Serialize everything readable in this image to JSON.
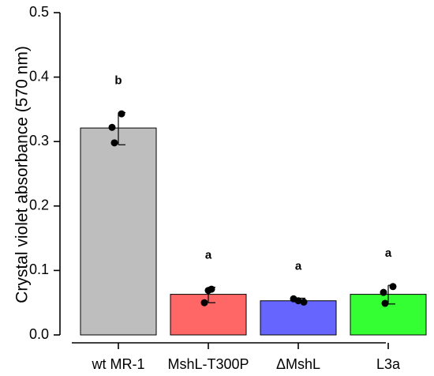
{
  "chart_data": {
    "type": "bar",
    "title": "",
    "xlabel": "",
    "ylabel": "Crystal violet absorbance (570 nm)",
    "ylim": [
      0,
      0.5
    ],
    "yticks": [
      "0.0",
      "0.1",
      "0.2",
      "0.3",
      "0.4",
      "0.5"
    ],
    "grid": false,
    "categories": [
      "wt MR-1",
      "MshL-T300P",
      "ΔMshL",
      "L3a"
    ],
    "values": [
      0.321,
      0.063,
      0.053,
      0.063
    ],
    "error_upper": [
      0.345,
      0.074,
      0.057,
      0.077
    ],
    "error_lower": [
      0.295,
      0.05,
      0.05,
      0.048
    ],
    "points": [
      [
        0.343,
        0.322,
        0.298
      ],
      [
        0.071,
        0.069,
        0.05
      ],
      [
        0.056,
        0.053,
        0.051
      ],
      [
        0.075,
        0.066,
        0.049
      ]
    ],
    "significance": [
      "b",
      "a",
      "a",
      "a"
    ],
    "colors": [
      "#bebebe",
      "#ff6666",
      "#6666ff",
      "#33ff33"
    ]
  }
}
